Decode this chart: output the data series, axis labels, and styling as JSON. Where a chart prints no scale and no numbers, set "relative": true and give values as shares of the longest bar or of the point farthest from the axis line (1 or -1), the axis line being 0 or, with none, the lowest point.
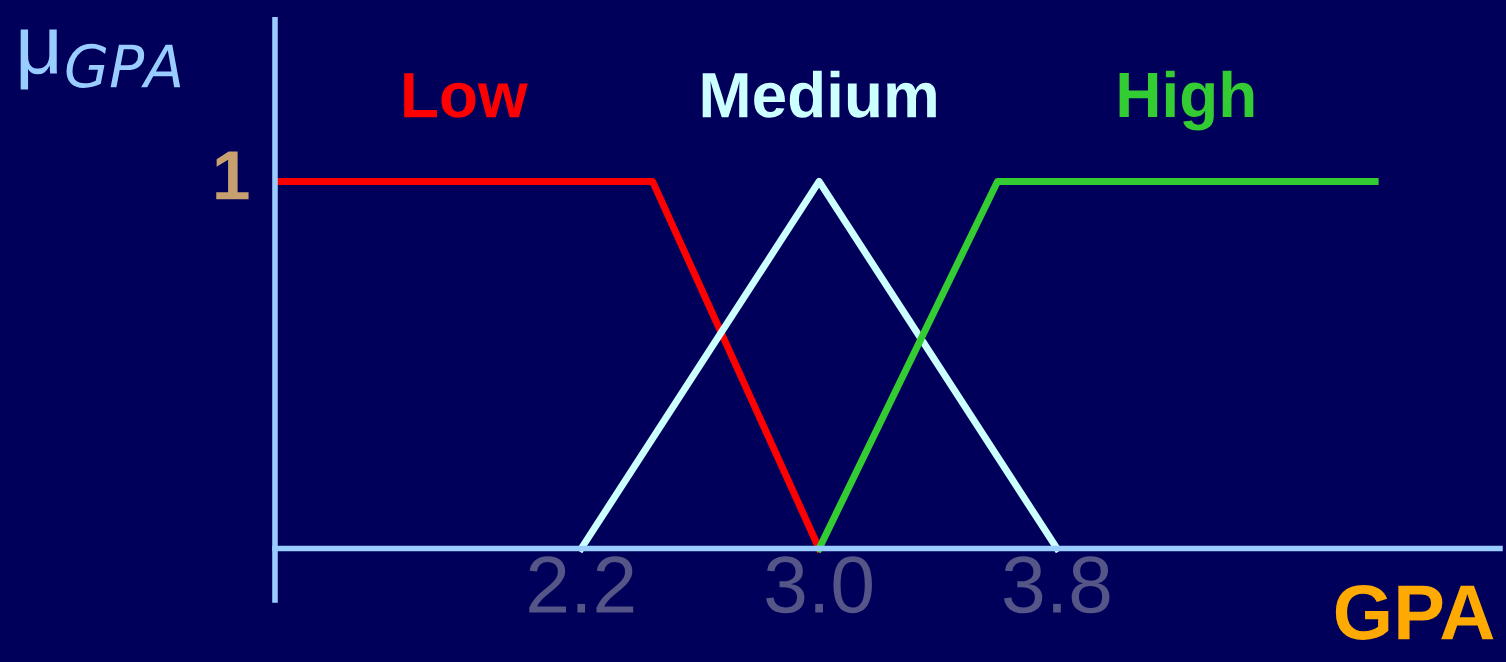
{
  "chart_data": {
    "type": "line",
    "xlabel": "GPA",
    "ylabel": "μ$_{GPA}$",
    "series": [
      {
        "name": "Low",
        "color": "#ff0000",
        "x": [
          1.17,
          2.44,
          3.0
        ],
        "values": [
          1,
          1,
          0
        ]
      },
      {
        "name": "Medium",
        "color": "#ccffff",
        "x": [
          2.2,
          3.0,
          3.8
        ],
        "values": [
          0,
          1,
          0
        ]
      },
      {
        "name": "High",
        "color": "#33cc33",
        "x": [
          3.0,
          3.6,
          4.87
        ],
        "values": [
          0,
          1,
          1
        ]
      }
    ],
    "xlim": [
      1.17,
      5.29
    ],
    "relative": true,
    "annotations": [
      "1"
    ],
    "xticks": [
      2.2,
      {
        "value": 3.0,
        "label": "3.0"
      },
      3.8
    ],
    "grid": false,
    "legend": false,
    "marker": "none",
    "line_style": "solid"
  }
}
